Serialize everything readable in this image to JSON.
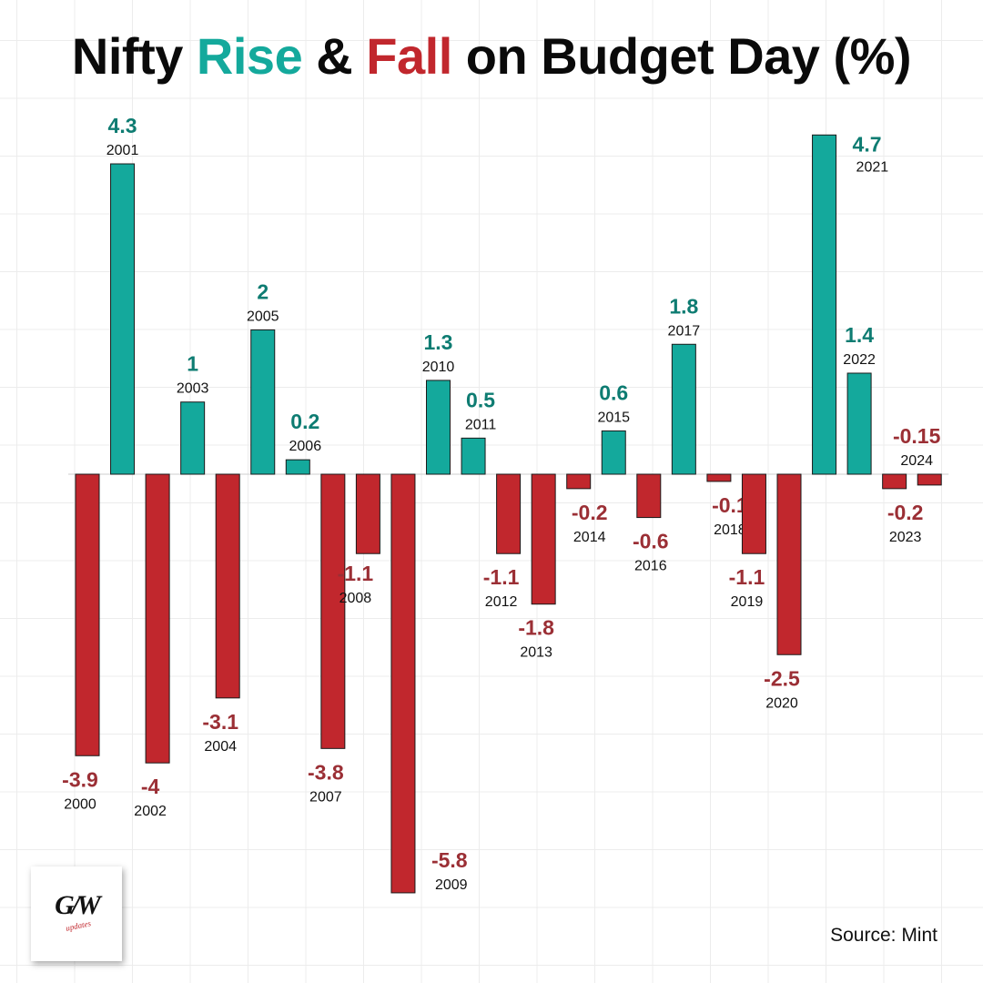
{
  "header": {
    "title_part1": "Nifty ",
    "title_rise": "Rise",
    "title_mid": " & ",
    "title_fall": "Fall",
    "title_part2": " on Budget Day (%)"
  },
  "footer": {
    "source": "Source: Mint"
  },
  "logo": {
    "mark": "G/W",
    "sub": "updates"
  },
  "colors": {
    "rise": "#14a99c",
    "fall": "#c1272d",
    "rise_label": "#0e7c72",
    "fall_label": "#9b2f35"
  },
  "chart_data": {
    "type": "bar",
    "title": "Nifty Rise & Fall on Budget Day (%)",
    "xlabel": "",
    "ylabel": "",
    "ylim": [
      -5.8,
      4.7
    ],
    "grid": true,
    "legend": "none",
    "categories": [
      "2000",
      "2001",
      "2002",
      "2003",
      "2004",
      "2005",
      "2006",
      "2007",
      "2008",
      "2009",
      "2010",
      "2011",
      "2012",
      "2013",
      "2014",
      "2015",
      "2016",
      "2017",
      "2018",
      "2019",
      "2020",
      "2021",
      "2022",
      "2023",
      "2024"
    ],
    "values": [
      -3.9,
      4.3,
      -4,
      1,
      -3.1,
      2,
      0.2,
      -3.8,
      -1.1,
      -5.8,
      1.3,
      0.5,
      -1.1,
      -1.8,
      -0.2,
      0.6,
      -0.6,
      1.8,
      -0.1,
      -1.1,
      -2.5,
      4.7,
      1.4,
      -0.2,
      -0.15
    ],
    "value_labels": [
      "-3.9",
      "4.3",
      "-4",
      "1",
      "-3.1",
      "2",
      "0.2",
      "-3.8",
      "-1.1",
      "-5.8",
      "1.3",
      "0.5",
      "-1.1",
      "-1.8",
      "-0.2",
      "0.6",
      "-0.6",
      "1.8",
      "-0.1",
      "-1.1",
      "-2.5",
      "4.7",
      "1.4",
      "-0.2",
      "-0.15"
    ]
  }
}
